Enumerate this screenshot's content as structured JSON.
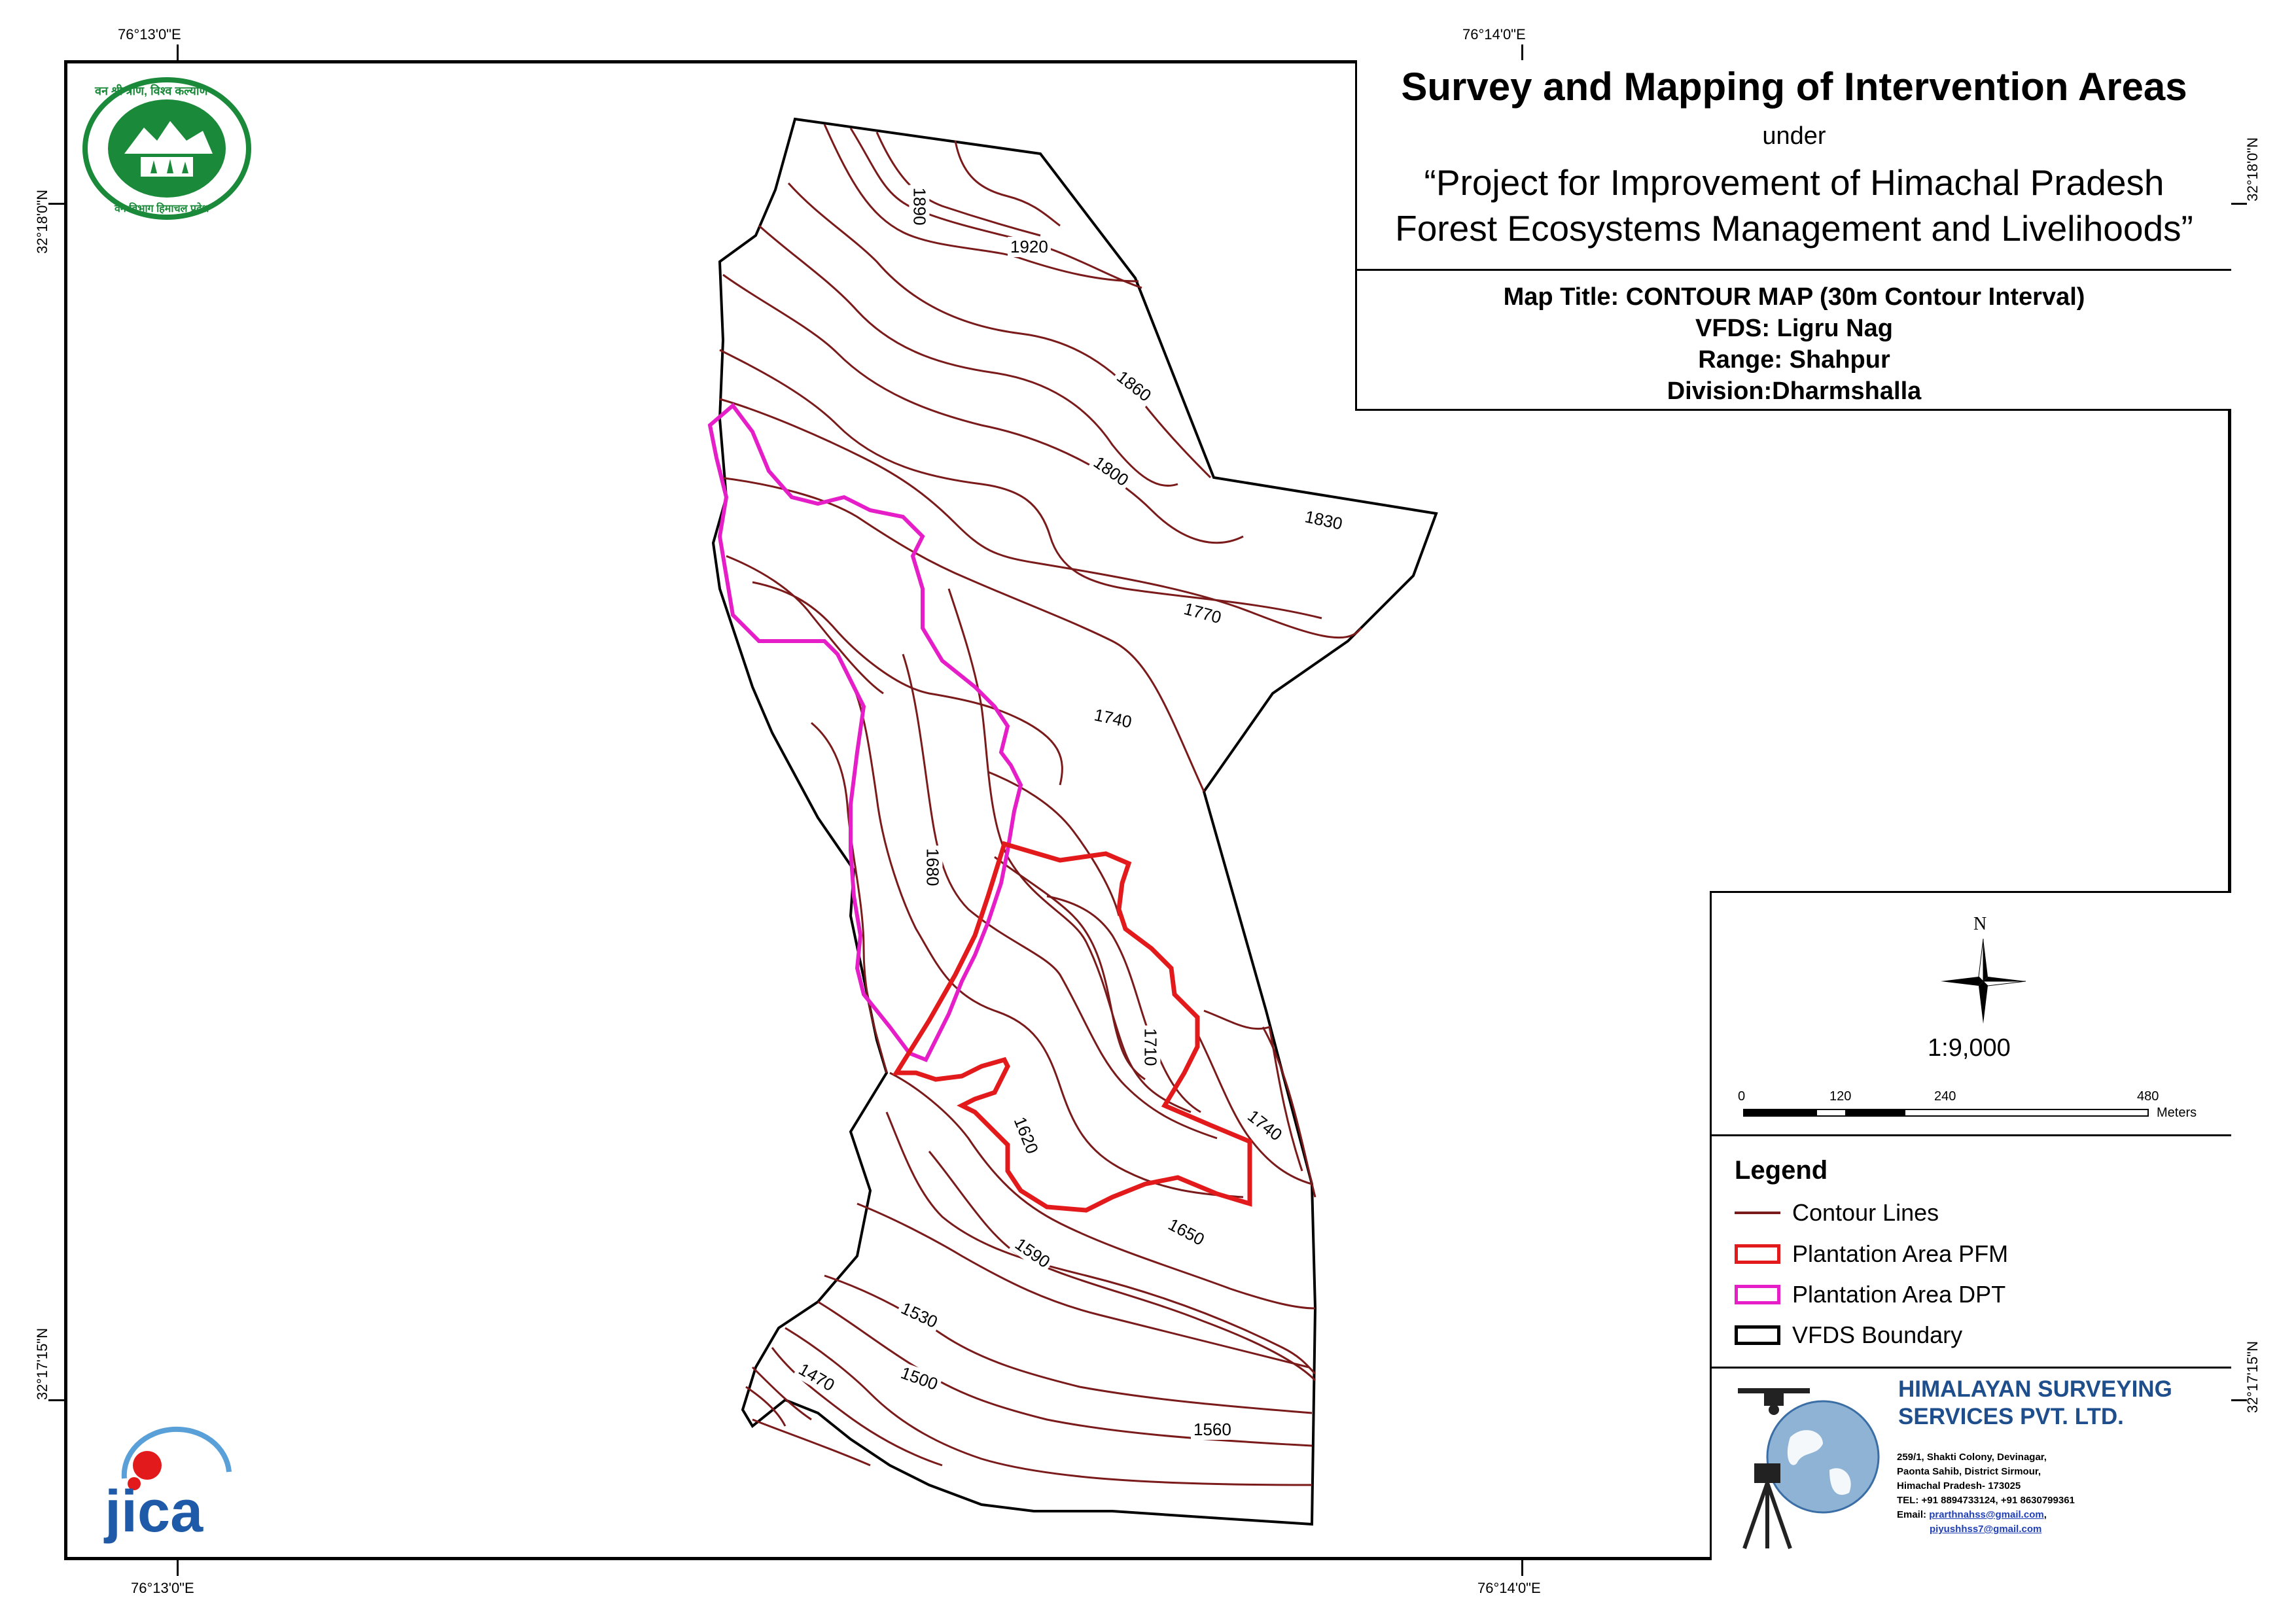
{
  "coordinates": {
    "top_left_lon": "76°13'0\"E",
    "top_right_lon": "76°14'0\"E",
    "bottom_left_lon": "76°13'0\"E",
    "bottom_right_lon": "76°14'0\"E",
    "left_top_lat": "32°18'0\"N",
    "left_bottom_lat": "32°17'15\"N",
    "right_top_lat": "32°18'0\"N",
    "right_bottom_lat": "32°17'15\"N"
  },
  "title": {
    "main": "Survey and Mapping of Intervention Areas",
    "under": "under",
    "project_line1": "“Project for Improvement of Himachal Pradesh",
    "project_line2": "Forest Ecosystems Management and Livelihoods”",
    "map_title": "Map Title: CONTOUR MAP (30m Contour Interval)",
    "vfds": "VFDS: Ligru Nag",
    "range": "Range: Shahpur",
    "division": "Division:Dharmshalla"
  },
  "logos": {
    "forest_dept_text_top": "वन श्री त्राण, विश्व कल्याण",
    "forest_dept_text_bottom": "वन विभाग हिमाचल प्रदेश",
    "jica": "jica"
  },
  "contour_labels": [
    "1890",
    "1920",
    "1860",
    "1800",
    "1830",
    "1770",
    "1740",
    "1680",
    "1710",
    "1740",
    "1620",
    "1650",
    "1590",
    "1530",
    "1470",
    "1500",
    "1560"
  ],
  "north_arrow": {
    "label": "N"
  },
  "scale": {
    "ratio": "1:9,000",
    "ticks": [
      "0",
      "120",
      "240",
      "480"
    ],
    "unit": "Meters"
  },
  "legend": {
    "title": "Legend",
    "items": [
      {
        "label": "Contour Lines",
        "color": "#7a1a1a",
        "kind": "line"
      },
      {
        "label": "Plantation Area PFM",
        "color": "#e31a1c",
        "kind": "box"
      },
      {
        "label": "Plantation Area DPT",
        "color": "#e61ec8",
        "kind": "box"
      },
      {
        "label": "VFDS Boundary",
        "color": "#000000",
        "kind": "box"
      }
    ]
  },
  "company": {
    "name_line1": "HIMALAYAN SURVEYING",
    "name_line2": "SERVICES PVT. LTD.",
    "addr1": "259/1, Shakti Colony, Devinagar,",
    "addr2": "Paonta Sahib, District Sirmour,",
    "addr3": "Himachal Pradesh- 173025",
    "tel": "TEL: +91 8894733124, +91 8630799361",
    "email_label": "Email: ",
    "email1": "prarthnahss@gmail.com",
    "email1_suffix": ",",
    "email2": "piyushhss7@gmail.com"
  },
  "colors": {
    "contour": "#7a1a1a",
    "pfm": "#e31a1c",
    "dpt": "#e61ec8",
    "boundary": "#000000",
    "company_blue": "#1f4e8c",
    "forest_green": "#1a8a3a",
    "jica_blue": "#1e5aa8",
    "jica_red": "#e31a1c"
  }
}
